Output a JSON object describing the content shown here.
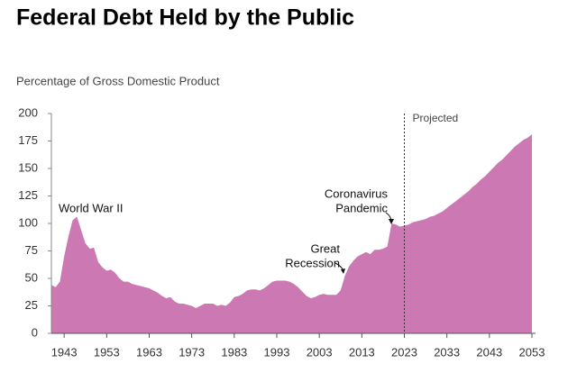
{
  "chart_data": {
    "type": "area",
    "title": "Federal Debt Held by the Public",
    "subtitle": "Percentage of Gross Domestic Product",
    "color": "#cb78b3",
    "x": [
      1940,
      1941,
      1942,
      1943,
      1944,
      1945,
      1946,
      1947,
      1948,
      1949,
      1950,
      1951,
      1952,
      1953,
      1954,
      1955,
      1956,
      1957,
      1958,
      1959,
      1960,
      1961,
      1962,
      1963,
      1964,
      1965,
      1966,
      1967,
      1968,
      1969,
      1970,
      1971,
      1972,
      1973,
      1974,
      1975,
      1976,
      1977,
      1978,
      1979,
      1980,
      1981,
      1982,
      1983,
      1984,
      1985,
      1986,
      1987,
      1988,
      1989,
      1990,
      1991,
      1992,
      1993,
      1994,
      1995,
      1996,
      1997,
      1998,
      1999,
      2000,
      2001,
      2002,
      2003,
      2004,
      2005,
      2006,
      2007,
      2008,
      2009,
      2010,
      2011,
      2012,
      2013,
      2014,
      2015,
      2016,
      2017,
      2018,
      2019,
      2020,
      2021,
      2022,
      2023,
      2024,
      2025,
      2026,
      2027,
      2028,
      2029,
      2030,
      2031,
      2032,
      2033,
      2034,
      2035,
      2036,
      2037,
      2038,
      2039,
      2040,
      2041,
      2042,
      2043,
      2044,
      2045,
      2046,
      2047,
      2048,
      2049,
      2050,
      2051,
      2052,
      2053
    ],
    "values": [
      44,
      42,
      47,
      70,
      88,
      103,
      106,
      94,
      82,
      77,
      78,
      65,
      60,
      57,
      58,
      55,
      50,
      47,
      47,
      45,
      44,
      43,
      42,
      41,
      39,
      37,
      34,
      32,
      33,
      29,
      27,
      27,
      26,
      25,
      23,
      25,
      27,
      27,
      27,
      25,
      26,
      25,
      28,
      33,
      34,
      36,
      39,
      40,
      40,
      39,
      41,
      44,
      47,
      48,
      48,
      48,
      47,
      45,
      42,
      38,
      34,
      32,
      33,
      35,
      36,
      35,
      35,
      35,
      39,
      52,
      61,
      66,
      70,
      72,
      74,
      72,
      76,
      76,
      77,
      79,
      100,
      99,
      97,
      98,
      99,
      101,
      102,
      103,
      104,
      106,
      107,
      109,
      111,
      114,
      117,
      120,
      123,
      126,
      129,
      133,
      136,
      140,
      143,
      147,
      151,
      155,
      158,
      162,
      166,
      170,
      173,
      176,
      178,
      181
    ],
    "xlim": [
      1940,
      2053
    ],
    "xticks": [
      1943,
      1953,
      1963,
      1973,
      1983,
      1993,
      2003,
      2013,
      2023,
      2033,
      2043,
      2053
    ],
    "ylim": [
      0,
      200
    ],
    "yticks": [
      0,
      25,
      50,
      75,
      100,
      125,
      150,
      175,
      200
    ],
    "projection_start": 2023,
    "projection_label": "Projected",
    "annotations": [
      {
        "text": [
          "World War II"
        ]
      },
      {
        "text": [
          "Great",
          "Recession"
        ]
      },
      {
        "text": [
          "Coronavirus",
          "Pandemic"
        ]
      }
    ]
  }
}
